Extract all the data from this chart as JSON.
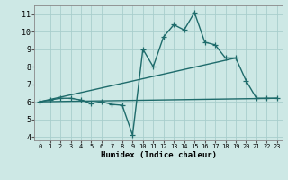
{
  "xlabel": "Humidex (Indice chaleur)",
  "xlim": [
    -0.5,
    23.5
  ],
  "ylim": [
    3.8,
    11.5
  ],
  "yticks": [
    4,
    5,
    6,
    7,
    8,
    9,
    10,
    11
  ],
  "xticks": [
    0,
    1,
    2,
    3,
    4,
    5,
    6,
    7,
    8,
    9,
    10,
    11,
    12,
    13,
    14,
    15,
    16,
    17,
    18,
    19,
    20,
    21,
    22,
    23
  ],
  "bg_color": "#cde8e5",
  "grid_color": "#a8cecc",
  "line_color": "#1e6b6b",
  "series1_x": [
    0,
    1,
    2,
    3,
    4,
    5,
    6,
    7,
    8,
    9,
    10,
    11,
    12,
    13,
    14,
    15,
    16,
    17,
    18,
    19,
    20,
    21,
    22,
    23
  ],
  "series1_y": [
    6.0,
    6.1,
    6.2,
    6.2,
    6.1,
    5.9,
    6.0,
    5.85,
    5.8,
    4.1,
    9.0,
    8.0,
    9.7,
    10.4,
    10.1,
    11.1,
    9.4,
    9.25,
    8.5,
    8.5,
    7.2,
    6.2,
    6.2,
    6.2
  ],
  "series2_x": [
    0,
    23
  ],
  "series2_y": [
    6.0,
    6.2
  ],
  "series3_x": [
    0,
    19
  ],
  "series3_y": [
    6.0,
    8.5
  ],
  "marker": "+",
  "markersize": 4,
  "linewidth": 1.0
}
